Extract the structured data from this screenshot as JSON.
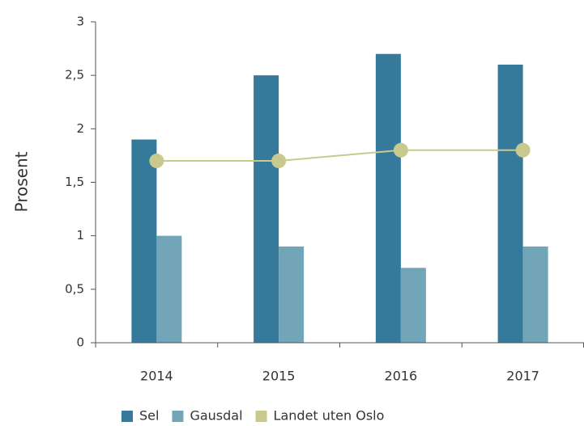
{
  "chart_data": {
    "type": "bar",
    "y_label": "Prosent",
    "categories": [
      "2014",
      "2015",
      "2016",
      "2017"
    ],
    "series": [
      {
        "name": "Sel",
        "color": "#357a9a",
        "values": [
          1.9,
          2.5,
          2.7,
          2.6
        ]
      },
      {
        "name": "Gausdal",
        "color": "#72a5b7",
        "values": [
          1.0,
          0.9,
          0.7,
          0.9
        ]
      },
      {
        "name": "Landet uten Oslo",
        "color": "#c9c98e",
        "type": "line",
        "values": [
          1.7,
          1.7,
          1.8,
          1.8
        ]
      }
    ],
    "ylim": [
      0,
      3
    ],
    "yticks": [
      0,
      {
        "value": 0.5,
        "label": "0,5"
      },
      1,
      {
        "value": 1.5,
        "label": "1,5"
      },
      2,
      {
        "value": 2.5,
        "label": "2,5"
      },
      3
    ],
    "grid": false,
    "legend": "bottom"
  }
}
